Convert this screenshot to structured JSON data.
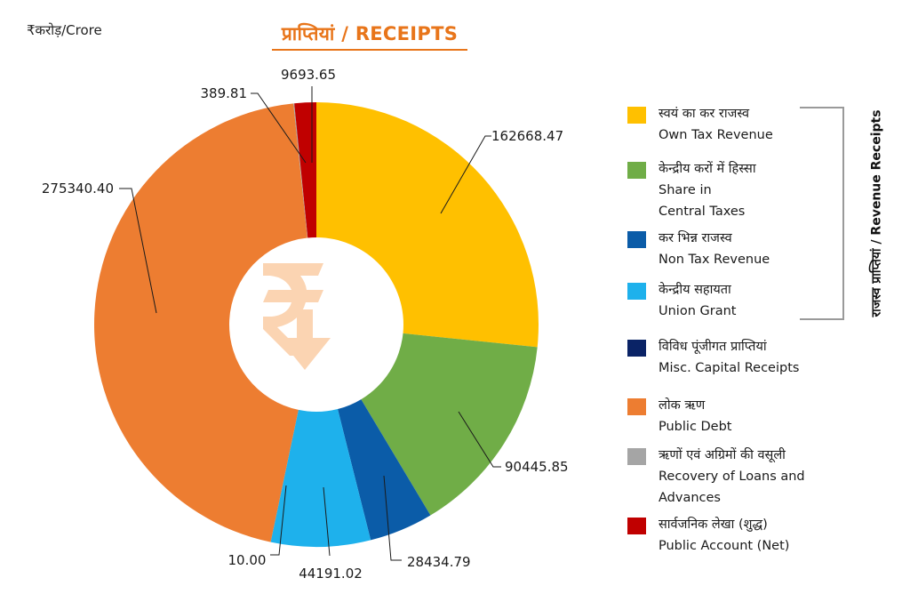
{
  "unit_label": "₹करोड़/Crore",
  "title": "प्राप्तियां / RECEIPTS",
  "bracket_label": "राजस्व प्राप्तियां / Revenue Receipts",
  "chart_data": {
    "type": "pie",
    "style": "donut",
    "start_angle_deg": 0,
    "direction": "clockwise",
    "center_icon": "rupee-down-arrow-icon",
    "series": [
      {
        "hindi": "स्वयं का कर राजस्व",
        "english": "Own Tax Revenue",
        "value": 162668.47,
        "label": "162668.47",
        "color": "#FFC000"
      },
      {
        "hindi": "केन्द्रीय करों में हिस्सा",
        "english": "Share in Central Taxes",
        "value": 90445.85,
        "label": "90445.85",
        "color": "#70AD47"
      },
      {
        "hindi": "कर भिन्न राजस्व",
        "english": "Non Tax Revenue",
        "value": 28434.79,
        "label": "28434.79",
        "color": "#0B5CA8"
      },
      {
        "hindi": "केन्द्रीय सहायता",
        "english": "Union Grant",
        "value": 44191.02,
        "label": "44191.02",
        "color": "#1EB1EC"
      },
      {
        "hindi": "विविध पूंजीगत प्राप्तियां",
        "english": "Misc. Capital Receipts",
        "value": 10.0,
        "label": "10.00",
        "color": "#0A2366"
      },
      {
        "hindi": "लोक ऋण",
        "english": "Public Debt",
        "value": 275340.4,
        "label": "275340.40",
        "color": "#ED7D31"
      },
      {
        "hindi": "ऋणों एवं अग्रिमों की वसूली",
        "english": "Recovery of Loans and Advances",
        "value": 389.81,
        "label": "389.81",
        "color": "#A5A5A5"
      },
      {
        "hindi": "सार्वजनिक लेखा (शुद्ध)",
        "english": "Public Account (Net)",
        "value": 9693.65,
        "label": "9693.65",
        "color": "#C00000"
      }
    ]
  },
  "legend": [
    {
      "hindi": "स्वयं का कर राजस्व",
      "english_lines": [
        "Own Tax Revenue"
      ],
      "color": "#FFC000"
    },
    {
      "hindi": "केन्द्रीय करों में हिस्सा",
      "english_lines": [
        "Share in",
        "Central Taxes"
      ],
      "color": "#70AD47"
    },
    {
      "hindi": "कर भिन्न राजस्व",
      "english_lines": [
        "Non Tax Revenue"
      ],
      "color": "#0B5CA8"
    },
    {
      "hindi": "केन्द्रीय सहायता",
      "english_lines": [
        "Union Grant"
      ],
      "color": "#1EB1EC"
    },
    {
      "hindi": "विविध पूंजीगत प्राप्तियां",
      "english_lines": [
        "Misc. Capital Receipts"
      ],
      "color": "#0A2366"
    },
    {
      "hindi": "लोक ऋण",
      "english_lines": [
        "Public Debt"
      ],
      "color": "#ED7D31"
    },
    {
      "hindi": "ऋणों एवं अग्रिमों की वसूली",
      "english_lines": [
        "Recovery of Loans and",
        "Advances"
      ],
      "color": "#A5A5A5"
    },
    {
      "hindi": "सार्वजनिक लेखा (शुद्ध)",
      "english_lines": [
        "Public Account (Net)"
      ],
      "color": "#C00000"
    }
  ]
}
